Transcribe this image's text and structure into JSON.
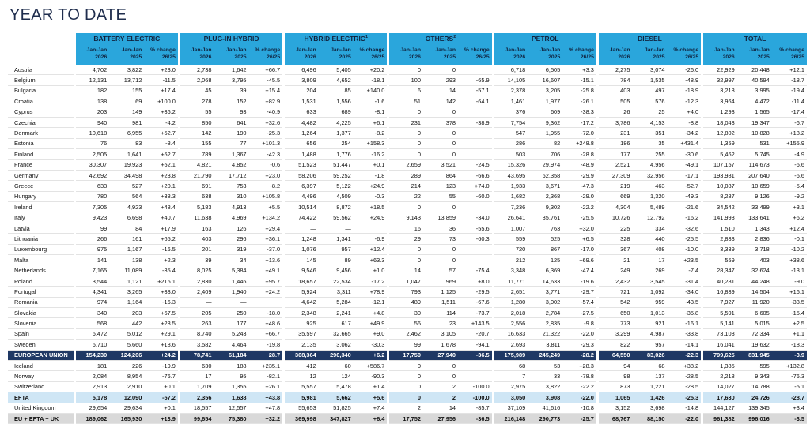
{
  "title": "YEAR TO DATE",
  "groups": [
    {
      "name": "BATTERY ELECTRIC"
    },
    {
      "name": "PLUG-IN HYBRID"
    },
    {
      "name": "HYBRID ELECTRIC",
      "note": "1"
    },
    {
      "name": "OTHERS",
      "note": "2"
    },
    {
      "name": "PETROL"
    },
    {
      "name": "DIESEL"
    },
    {
      "name": "TOTAL"
    }
  ],
  "subheaders": [
    [
      "Jan-Jan",
      "2026"
    ],
    [
      "Jan-Jan",
      "2025"
    ],
    [
      "% change",
      "26/25"
    ]
  ],
  "eu_rows": [
    [
      "Austria",
      "4,702",
      "3,822",
      "+23.0",
      "2,738",
      "1,642",
      "+66.7",
      "6,496",
      "5,405",
      "+20.2",
      "0",
      "0",
      null,
      "6,718",
      "6,505",
      "+3.3",
      "2,275",
      "3,074",
      "-26.0",
      "22,929",
      "20,448",
      "+12.1"
    ],
    [
      "Belgium",
      "12,131",
      "13,712",
      "-11.5",
      "2,068",
      "3,795",
      "-45.5",
      "3,809",
      "4,652",
      "-18.1",
      "100",
      "293",
      "-65.9",
      "14,105",
      "16,607",
      "-15.1",
      "784",
      "1,535",
      "-48.9",
      "32,997",
      "40,594",
      "-18.7"
    ],
    [
      "Bulgaria",
      "182",
      "155",
      "+17.4",
      "45",
      "39",
      "+15.4",
      "204",
      "85",
      "+140.0",
      "6",
      "14",
      "-57.1",
      "2,378",
      "3,205",
      "-25.8",
      "403",
      "497",
      "-18.9",
      "3,218",
      "3,995",
      "-19.4"
    ],
    [
      "Croatia",
      "138",
      "69",
      "+100.0",
      "278",
      "152",
      "+82.9",
      "1,531",
      "1,556",
      "-1.6",
      "51",
      "142",
      "-64.1",
      "1,461",
      "1,977",
      "-26.1",
      "505",
      "576",
      "-12.3",
      "3,964",
      "4,472",
      "-11.4"
    ],
    [
      "Cyprus",
      "203",
      "149",
      "+36.2",
      "55",
      "93",
      "-40.9",
      "633",
      "689",
      "-8.1",
      "0",
      "0",
      null,
      "376",
      "609",
      "-38.3",
      "26",
      "25",
      "+4.0",
      "1,293",
      "1,565",
      "-17.4"
    ],
    [
      "Czechia",
      "940",
      "981",
      "-4.2",
      "850",
      "641",
      "+32.6",
      "4,482",
      "4,225",
      "+6.1",
      "231",
      "378",
      "-38.9",
      "7,754",
      "9,362",
      "-17.2",
      "3,786",
      "4,153",
      "-8.8",
      "18,043",
      "19,347",
      "-6.7"
    ],
    [
      "Denmark",
      "10,618",
      "6,955",
      "+52.7",
      "142",
      "190",
      "-25.3",
      "1,264",
      "1,377",
      "-8.2",
      "0",
      "0",
      null,
      "547",
      "1,955",
      "-72.0",
      "231",
      "351",
      "-34.2",
      "12,802",
      "10,828",
      "+18.2"
    ],
    [
      "Estonia",
      "76",
      "83",
      "-8.4",
      "155",
      "77",
      "+101.3",
      "656",
      "254",
      "+158.3",
      "0",
      "0",
      null,
      "286",
      "82",
      "+248.8",
      "186",
      "35",
      "+431.4",
      "1,359",
      "531",
      "+155.9"
    ],
    [
      "Finland",
      "2,505",
      "1,641",
      "+52.7",
      "789",
      "1,367",
      "-42.3",
      "1,488",
      "1,776",
      "-16.2",
      "0",
      "0",
      null,
      "503",
      "706",
      "-28.8",
      "177",
      "255",
      "-30.6",
      "5,462",
      "5,745",
      "-4.9"
    ],
    [
      "France",
      "30,307",
      "19,923",
      "+52.1",
      "4,821",
      "4,852",
      "-0.6",
      "51,523",
      "51,447",
      "+0.1",
      "2,659",
      "3,521",
      "-24.5",
      "15,326",
      "29,974",
      "-48.9",
      "2,521",
      "4,956",
      "-49.1",
      "107,157",
      "114,673",
      "-6.6"
    ],
    [
      "Germany",
      "42,692",
      "34,498",
      "+23.8",
      "21,790",
      "17,712",
      "+23.0",
      "58,206",
      "59,252",
      "-1.8",
      "289",
      "864",
      "-66.6",
      "43,695",
      "62,358",
      "-29.9",
      "27,309",
      "32,956",
      "-17.1",
      "193,981",
      "207,640",
      "-6.6"
    ],
    [
      "Greece",
      "633",
      "527",
      "+20.1",
      "691",
      "753",
      "-8.2",
      "6,397",
      "5,122",
      "+24.9",
      "214",
      "123",
      "+74.0",
      "1,933",
      "3,671",
      "-47.3",
      "219",
      "463",
      "-52.7",
      "10,087",
      "10,659",
      "-5.4"
    ],
    [
      "Hungary",
      "780",
      "564",
      "+38.3",
      "638",
      "310",
      "+105.8",
      "4,496",
      "4,509",
      "-0.3",
      "22",
      "55",
      "-60.0",
      "1,682",
      "2,368",
      "-29.0",
      "669",
      "1,320",
      "-49.3",
      "8,287",
      "9,126",
      "-9.2"
    ],
    [
      "Ireland",
      "7,305",
      "4,923",
      "+48.4",
      "5,183",
      "4,913",
      "+5.5",
      "10,514",
      "8,872",
      "+18.5",
      "0",
      "0",
      null,
      "7,236",
      "9,302",
      "-22.2",
      "4,304",
      "5,489",
      "-21.6",
      "34,542",
      "33,499",
      "+3.1"
    ],
    [
      "Italy",
      "9,423",
      "6,698",
      "+40.7",
      "11,638",
      "4,969",
      "+134.2",
      "74,422",
      "59,562",
      "+24.9",
      "9,143",
      "13,859",
      "-34.0",
      "26,641",
      "35,761",
      "-25.5",
      "10,726",
      "12,792",
      "-16.2",
      "141,993",
      "133,641",
      "+6.2"
    ],
    [
      "Latvia",
      "99",
      "84",
      "+17.9",
      "163",
      "126",
      "+29.4",
      "—",
      "—",
      null,
      "16",
      "36",
      "-55.6",
      "1,007",
      "763",
      "+32.0",
      "225",
      "334",
      "-32.6",
      "1,510",
      "1,343",
      "+12.4"
    ],
    [
      "Lithuania",
      "266",
      "161",
      "+65.2",
      "403",
      "296",
      "+36.1",
      "1,248",
      "1,341",
      "-6.9",
      "29",
      "73",
      "-60.3",
      "559",
      "525",
      "+6.5",
      "328",
      "440",
      "-25.5",
      "2,833",
      "2,836",
      "-0.1"
    ],
    [
      "Luxembourg",
      "975",
      "1,167",
      "-16.5",
      "201",
      "319",
      "-37.0",
      "1,076",
      "957",
      "+12.4",
      "0",
      "0",
      null,
      "720",
      "867",
      "-17.0",
      "367",
      "408",
      "-10.0",
      "3,339",
      "3,718",
      "-10.2"
    ],
    [
      "Malta",
      "141",
      "138",
      "+2.3",
      "39",
      "34",
      "+13.6",
      "145",
      "89",
      "+63.3",
      "0",
      "0",
      null,
      "212",
      "125",
      "+69.6",
      "21",
      "17",
      "+23.5",
      "559",
      "403",
      "+38.6"
    ],
    [
      "Netherlands",
      "7,165",
      "11,089",
      "-35.4",
      "8,025",
      "5,384",
      "+49.1",
      "9,546",
      "9,456",
      "+1.0",
      "14",
      "57",
      "-75.4",
      "3,348",
      "6,369",
      "-47.4",
      "249",
      "269",
      "-7.4",
      "28,347",
      "32,624",
      "-13.1"
    ],
    [
      "Poland",
      "3,544",
      "1,121",
      "+216.1",
      "2,830",
      "1,446",
      "+95.7",
      "18,657",
      "22,534",
      "-17.2",
      "1,047",
      "969",
      "+8.0",
      "11,771",
      "14,633",
      "-19.6",
      "2,432",
      "3,545",
      "-31.4",
      "40,281",
      "44,248",
      "-9.0"
    ],
    [
      "Portugal",
      "4,341",
      "3,265",
      "+33.0",
      "2,409",
      "1,940",
      "+24.2",
      "5,924",
      "3,311",
      "+78.9",
      "793",
      "1,125",
      "-29.5",
      "2,651",
      "3,771",
      "-29.7",
      "721",
      "1,092",
      "-34.0",
      "16,839",
      "14,504",
      "+16.1"
    ],
    [
      "Romania",
      "974",
      "1,164",
      "-16.3",
      "—",
      "—",
      null,
      "4,642",
      "5,284",
      "-12.1",
      "489",
      "1,511",
      "-67.6",
      "1,280",
      "3,002",
      "-57.4",
      "542",
      "959",
      "-43.5",
      "7,927",
      "11,920",
      "-33.5"
    ],
    [
      "Slovakia",
      "340",
      "203",
      "+67.5",
      "205",
      "250",
      "-18.0",
      "2,348",
      "2,241",
      "+4.8",
      "30",
      "114",
      "-73.7",
      "2,018",
      "2,784",
      "-27.5",
      "650",
      "1,013",
      "-35.8",
      "5,591",
      "6,605",
      "-15.4"
    ],
    [
      "Slovenia",
      "568",
      "442",
      "+28.5",
      "263",
      "177",
      "+48.6",
      "925",
      "617",
      "+49.9",
      "56",
      "23",
      "+143.5",
      "2,556",
      "2,835",
      "-9.8",
      "773",
      "921",
      "-16.1",
      "5,141",
      "5,015",
      "+2.5"
    ],
    [
      "Spain",
      "6,472",
      "5,012",
      "+29.1",
      "8,740",
      "5,243",
      "+66.7",
      "35,597",
      "32,665",
      "+9.0",
      "2,462",
      "3,105",
      "-20.7",
      "16,633",
      "21,322",
      "-22.0",
      "3,299",
      "4,987",
      "-33.8",
      "73,103",
      "72,334",
      "+1.1"
    ],
    [
      "Sweden",
      "6,710",
      "5,660",
      "+18.6",
      "3,582",
      "4,464",
      "-19.8",
      "2,135",
      "3,062",
      "-30.3",
      "99",
      "1,678",
      "-94.1",
      "2,693",
      "3,811",
      "-29.3",
      "822",
      "957",
      "-14.1",
      "16,041",
      "19,632",
      "-18.3"
    ]
  ],
  "eu_total": [
    "EUROPEAN UNION",
    "154,230",
    "124,206",
    "+24.2",
    "78,741",
    "61,184",
    "+28.7",
    "308,364",
    "290,340",
    "+6.2",
    "17,750",
    "27,940",
    "-36.5",
    "175,989",
    "245,249",
    "-28.2",
    "64,550",
    "83,026",
    "-22.3",
    "799,625",
    "831,945",
    "-3.9"
  ],
  "efta_rows": [
    [
      "Iceland",
      "181",
      "226",
      "-19.9",
      "630",
      "188",
      "+235.1",
      "412",
      "60",
      "+586.7",
      "0",
      "0",
      null,
      "68",
      "53",
      "+28.3",
      "94",
      "68",
      "+38.2",
      "1,385",
      "595",
      "+132.8"
    ],
    [
      "Norway",
      "2,084",
      "8,954",
      "-76.7",
      "17",
      "95",
      "-82.1",
      "12",
      "124",
      "-90.3",
      "0",
      "0",
      null,
      "7",
      "33",
      "-78.8",
      "98",
      "137",
      "-28.5",
      "2,218",
      "9,343",
      "-76.3"
    ],
    [
      "Switzerland",
      "2,913",
      "2,910",
      "+0.1",
      "1,709",
      "1,355",
      "+26.1",
      "5,557",
      "5,478",
      "+1.4",
      "0",
      "2",
      "-100.0",
      "2,975",
      "3,822",
      "-22.2",
      "873",
      "1,221",
      "-28.5",
      "14,027",
      "14,788",
      "-5.1"
    ]
  ],
  "efta_total": [
    "EFTA",
    "5,178",
    "12,090",
    "-57.2",
    "2,356",
    "1,638",
    "+43.8",
    "5,981",
    "5,662",
    "+5.6",
    "0",
    "2",
    "-100.0",
    "3,050",
    "3,908",
    "-22.0",
    "1,065",
    "1,426",
    "-25.3",
    "17,630",
    "24,726",
    "-28.7"
  ],
  "uk_row": [
    "United Kingdom",
    "29,654",
    "29,634",
    "+0.1",
    "18,557",
    "12,557",
    "+47.8",
    "55,653",
    "51,825",
    "+7.4",
    "2",
    "14",
    "-85.7",
    "37,109",
    "41,616",
    "-10.8",
    "3,152",
    "3,698",
    "-14.8",
    "144,127",
    "139,345",
    "+3.4"
  ],
  "grand_total": [
    "EU + EFTA + UK",
    "189,062",
    "165,930",
    "+13.9",
    "99,654",
    "75,380",
    "+32.2",
    "369,998",
    "347,827",
    "+6.4",
    "17,752",
    "27,956",
    "-36.5",
    "216,148",
    "290,773",
    "-25.7",
    "68,767",
    "88,150",
    "-22.0",
    "961,382",
    "996,016",
    "-3.5"
  ]
}
